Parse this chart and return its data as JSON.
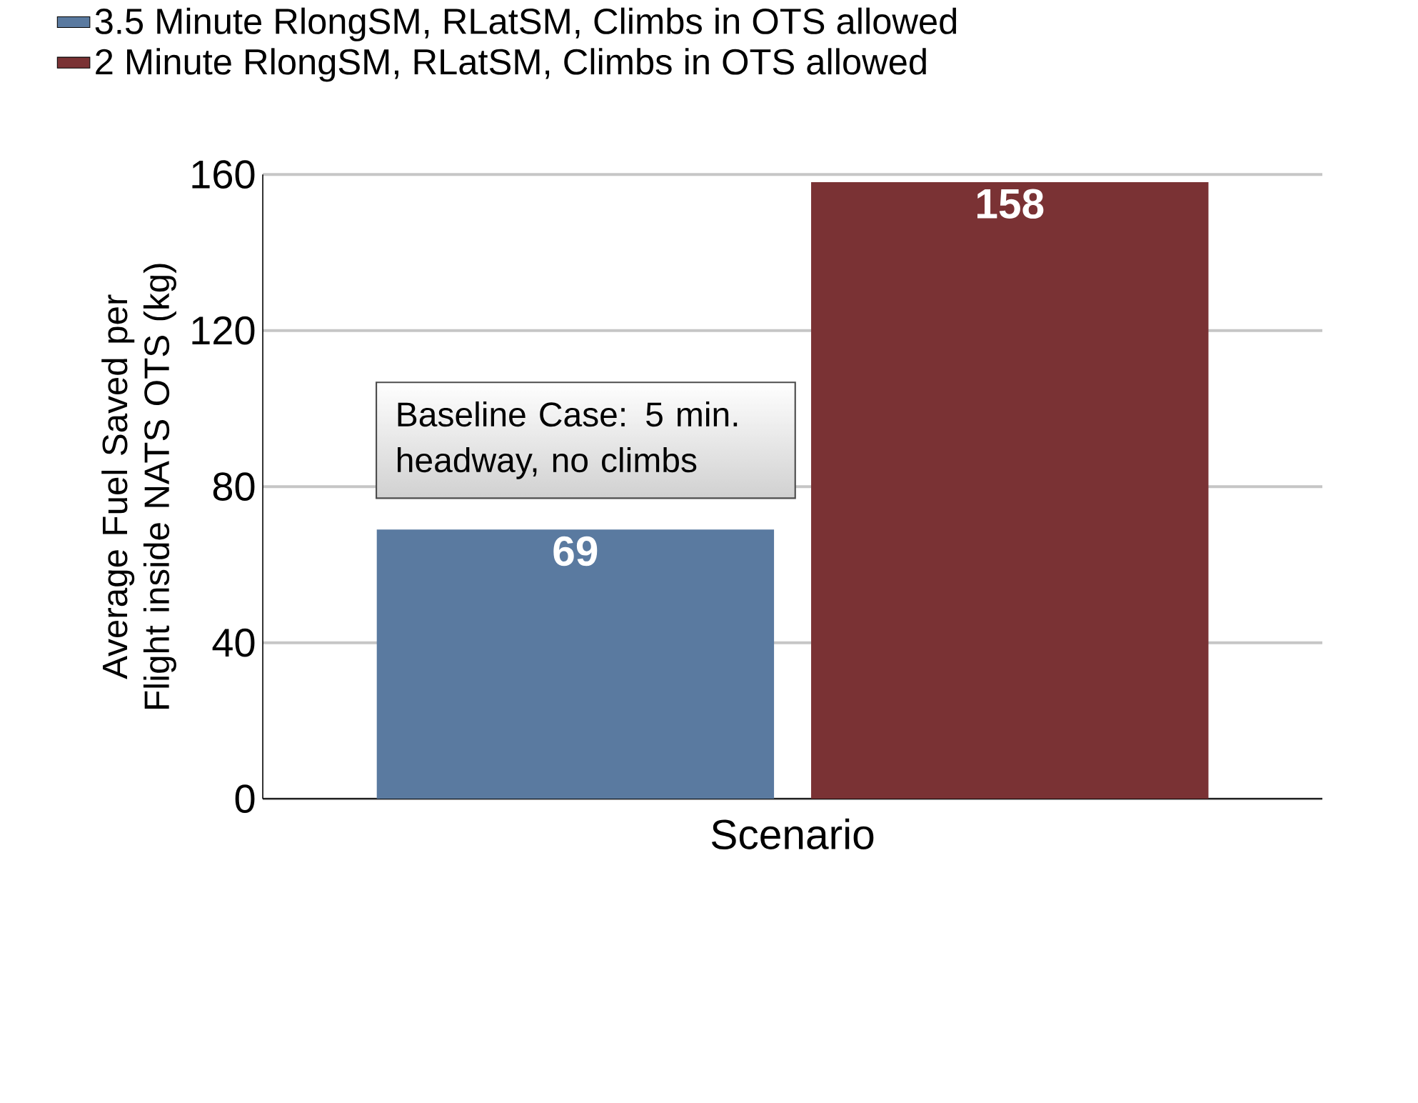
{
  "chart_data": {
    "type": "bar",
    "categories": [
      null
    ],
    "xlabel": "Scenario",
    "ylabel": "Average Fuel Saved per Flight inside NATS OTS (kg)",
    "series": [
      {
        "name": "3.5 Minute RlongSM, RLatSM, Climbs in OTS allowed",
        "color": "#5a7aa0",
        "values": [
          69
        ]
      },
      {
        "name": "2 Minute RlongSM, RLatSM, Climbs in OTS allowed",
        "color": "#7a3234",
        "values": [
          158
        ]
      }
    ],
    "ylim": [
      0,
      160
    ],
    "yticks": [
      0,
      40,
      80,
      120,
      160
    ],
    "grid": "y",
    "legend": "top",
    "data_labels": true,
    "annotations": [
      "Baseline Case: 5 min. headway, no climbs"
    ]
  }
}
